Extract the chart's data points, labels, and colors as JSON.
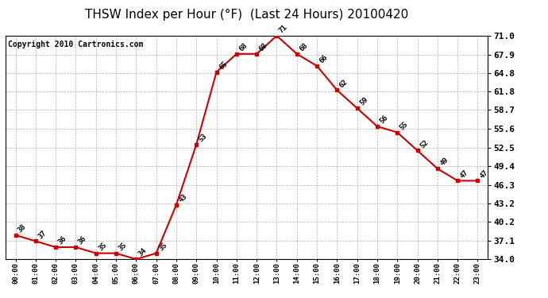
{
  "title": "THSW Index per Hour (°F)  (Last 24 Hours) 20100420",
  "copyright": "Copyright 2010 Cartronics.com",
  "hours": [
    "00:00",
    "01:00",
    "02:00",
    "03:00",
    "04:00",
    "05:00",
    "06:00",
    "07:00",
    "08:00",
    "09:00",
    "10:00",
    "11:00",
    "12:00",
    "13:00",
    "14:00",
    "15:00",
    "16:00",
    "17:00",
    "18:00",
    "19:00",
    "20:00",
    "21:00",
    "22:00",
    "23:00"
  ],
  "values": [
    38,
    37,
    36,
    36,
    35,
    35,
    34,
    35,
    43,
    53,
    65,
    68,
    68,
    71,
    68,
    66,
    62,
    59,
    56,
    55,
    52,
    49,
    47,
    47
  ],
  "line_color": "#cc0000",
  "marker_color": "#cc0000",
  "bg_color": "#ffffff",
  "grid_color": "#b0b0b0",
  "ylim_min": 34.0,
  "ylim_max": 71.0,
  "yticks": [
    34.0,
    37.1,
    40.2,
    43.2,
    46.3,
    49.4,
    52.5,
    55.6,
    58.7,
    61.8,
    64.8,
    67.9,
    71.0
  ],
  "title_fontsize": 11,
  "copyright_fontsize": 7,
  "label_fontsize": 6.5
}
